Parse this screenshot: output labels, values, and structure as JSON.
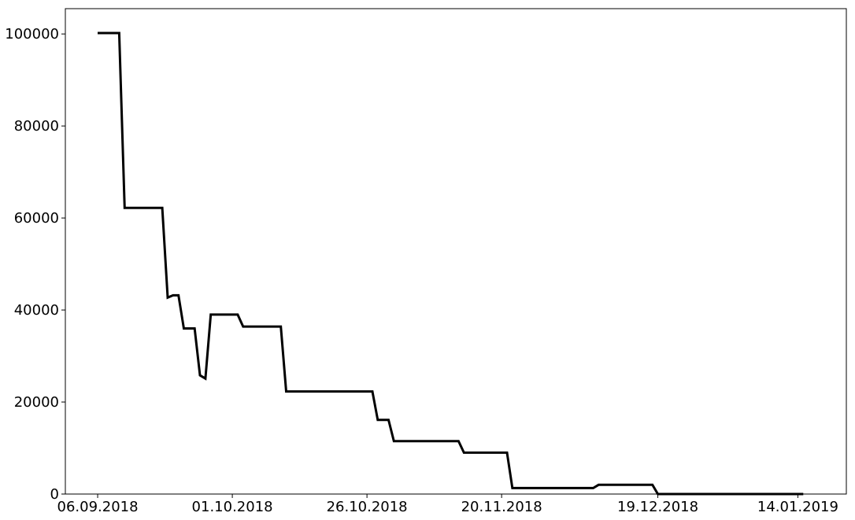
{
  "chart_data": {
    "type": "line",
    "title": "",
    "xlabel": "",
    "ylabel": "",
    "xlim": [
      "2018-08-31",
      "2019-01-23"
    ],
    "ylim": [
      0,
      105500
    ],
    "grid": false,
    "x_ticks": [
      {
        "date": "2018-09-06",
        "label": "06.09.2018"
      },
      {
        "date": "2018-10-01",
        "label": "01.10.2018"
      },
      {
        "date": "2018-10-26",
        "label": "26.10.2018"
      },
      {
        "date": "2018-11-20",
        "label": "20.11.2018"
      },
      {
        "date": "2018-12-19",
        "label": "19.12.2018"
      },
      {
        "date": "2019-01-14",
        "label": "14.01.2019"
      }
    ],
    "y_ticks": [
      {
        "value": 0,
        "label": "0"
      },
      {
        "value": 20000,
        "label": "20000"
      },
      {
        "value": 40000,
        "label": "40000"
      },
      {
        "value": 60000,
        "label": "60000"
      },
      {
        "value": 80000,
        "label": "80000"
      },
      {
        "value": 100000,
        "label": "100000"
      }
    ],
    "series": [
      {
        "color": "#000000",
        "points": [
          {
            "x": "2018-09-06",
            "y": 100200
          },
          {
            "x": "2018-09-10",
            "y": 100200
          },
          {
            "x": "2018-09-11",
            "y": 62200
          },
          {
            "x": "2018-09-18",
            "y": 62200
          },
          {
            "x": "2018-09-19",
            "y": 42700
          },
          {
            "x": "2018-09-20",
            "y": 43200
          },
          {
            "x": "2018-09-21",
            "y": 43200
          },
          {
            "x": "2018-09-22",
            "y": 36000
          },
          {
            "x": "2018-09-24",
            "y": 36000
          },
          {
            "x": "2018-09-25",
            "y": 25800
          },
          {
            "x": "2018-09-26",
            "y": 25100
          },
          {
            "x": "2018-09-27",
            "y": 39000
          },
          {
            "x": "2018-10-02",
            "y": 39000
          },
          {
            "x": "2018-10-03",
            "y": 36400
          },
          {
            "x": "2018-10-10",
            "y": 36400
          },
          {
            "x": "2018-10-11",
            "y": 22300
          },
          {
            "x": "2018-10-27",
            "y": 22300
          },
          {
            "x": "2018-10-28",
            "y": 16100
          },
          {
            "x": "2018-10-30",
            "y": 16100
          },
          {
            "x": "2018-10-31",
            "y": 11500
          },
          {
            "x": "2018-11-12",
            "y": 11500
          },
          {
            "x": "2018-11-13",
            "y": 9000
          },
          {
            "x": "2018-11-21",
            "y": 9000
          },
          {
            "x": "2018-11-22",
            "y": 1300
          },
          {
            "x": "2018-12-07",
            "y": 1300
          },
          {
            "x": "2018-12-08",
            "y": 2000
          },
          {
            "x": "2018-12-18",
            "y": 2000
          },
          {
            "x": "2018-12-19",
            "y": 0
          },
          {
            "x": "2019-01-15",
            "y": 0
          }
        ]
      }
    ]
  }
}
